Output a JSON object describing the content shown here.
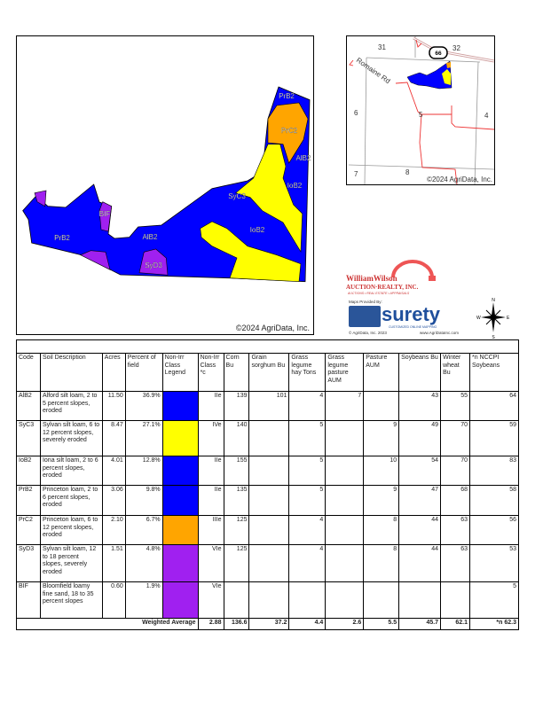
{
  "main_map": {
    "copyright": "©2024 AgriData, Inc.",
    "labels": [
      "PrB2",
      "PrC2",
      "AlB2",
      "IoB2",
      "SyC3",
      "IoB2",
      "BIF",
      "PrB2",
      "AlB2",
      "SyD3"
    ]
  },
  "inset_map": {
    "sections": [
      "31",
      "32",
      "6",
      "5",
      "4",
      "7",
      "8"
    ],
    "road": "Romaine Rd",
    "route": "66",
    "copyright": "©2024 AgriData, Inc."
  },
  "logos": {
    "company_line1": "WilliamWilson",
    "company_line2": "AUCTION·REALTY, INC.",
    "company_line3": "AUCTIONS • REAL ESTATE • APPRAISALS",
    "maps_provided": "Maps Provided By:",
    "surety": "surety",
    "surety_tag": "CUSTOMIZED ONLINE MAPPING",
    "agridata_copy": "© AgriData, Inc. 2023",
    "agridata_url": "www.AgriDataInc.com",
    "compass": [
      "N",
      "S",
      "W",
      "E"
    ]
  },
  "colors": {
    "IIe": "#0000ff",
    "IVe": "#ffff00",
    "IIIe": "#ffa500",
    "VIe": "#a020f0"
  },
  "table": {
    "headers": [
      "Code",
      "Soil Description",
      "Acres",
      "Percent of field",
      "Non-Irr Class Legend",
      "Non-Irr Class *c",
      "Corn Bu",
      "Grain sorghum Bu",
      "Grass legume hay Tons",
      "Grass legume pasture AUM",
      "Pasture AUM",
      "Soybeans Bu",
      "Winter wheat Bu",
      "*n NCCPI Soybeans"
    ],
    "rows": [
      {
        "code": "AlB2",
        "desc": "Alford silt loam, 2 to 5 percent slopes, eroded",
        "acres": "11.50",
        "pct": "36.9%",
        "color": "#0000ff",
        "cls": "IIe",
        "corn": "139",
        "sorghum": "101",
        "hay": "4",
        "gpast": "7",
        "pasture": "",
        "soy": "43",
        "wheat": "55",
        "nccpi": "64"
      },
      {
        "code": "SyC3",
        "desc": "Sylvan silt loam, 6 to 12 percent slopes, severely eroded",
        "acres": "8.47",
        "pct": "27.1%",
        "color": "#ffff00",
        "cls": "IVe",
        "corn": "140",
        "sorghum": "",
        "hay": "5",
        "gpast": "",
        "pasture": "9",
        "soy": "49",
        "wheat": "70",
        "nccpi": "59"
      },
      {
        "code": "IoB2",
        "desc": "Iona silt loam, 2 to 6 percent slopes, eroded",
        "acres": "4.01",
        "pct": "12.8%",
        "color": "#0000ff",
        "cls": "IIe",
        "corn": "155",
        "sorghum": "",
        "hay": "5",
        "gpast": "",
        "pasture": "10",
        "soy": "54",
        "wheat": "70",
        "nccpi": "83"
      },
      {
        "code": "PrB2",
        "desc": "Princeton loam, 2 to 6 percent slopes, eroded",
        "acres": "3.06",
        "pct": "9.8%",
        "color": "#0000ff",
        "cls": "IIe",
        "corn": "135",
        "sorghum": "",
        "hay": "5",
        "gpast": "",
        "pasture": "9",
        "soy": "47",
        "wheat": "68",
        "nccpi": "58"
      },
      {
        "code": "PrC2",
        "desc": "Princeton loam, 6 to 12 percent slopes, eroded",
        "acres": "2.10",
        "pct": "6.7%",
        "color": "#ffa500",
        "cls": "IIIe",
        "corn": "125",
        "sorghum": "",
        "hay": "4",
        "gpast": "",
        "pasture": "8",
        "soy": "44",
        "wheat": "63",
        "nccpi": "56"
      },
      {
        "code": "SyD3",
        "desc": "Sylvan silt loam, 12 to 18 percent slopes, severely eroded",
        "acres": "1.51",
        "pct": "4.8%",
        "color": "#a020f0",
        "cls": "VIe",
        "corn": "125",
        "sorghum": "",
        "hay": "4",
        "gpast": "",
        "pasture": "8",
        "soy": "44",
        "wheat": "63",
        "nccpi": "53"
      },
      {
        "code": "BIF",
        "desc": "Bloomfield loamy fine sand, 18 to 35 percent slopes",
        "acres": "0.60",
        "pct": "1.9%",
        "color": "#a020f0",
        "cls": "VIe",
        "corn": "",
        "sorghum": "",
        "hay": "",
        "gpast": "",
        "pasture": "",
        "soy": "",
        "wheat": "",
        "nccpi": "5"
      }
    ],
    "weighted": {
      "label": "Weighted Average",
      "cls": "2.88",
      "corn": "136.6",
      "sorghum": "37.2",
      "hay": "4.4",
      "gpast": "2.6",
      "pasture": "5.5",
      "soy": "45.7",
      "wheat": "62.1",
      "nccpi": "*n 62.3"
    }
  }
}
